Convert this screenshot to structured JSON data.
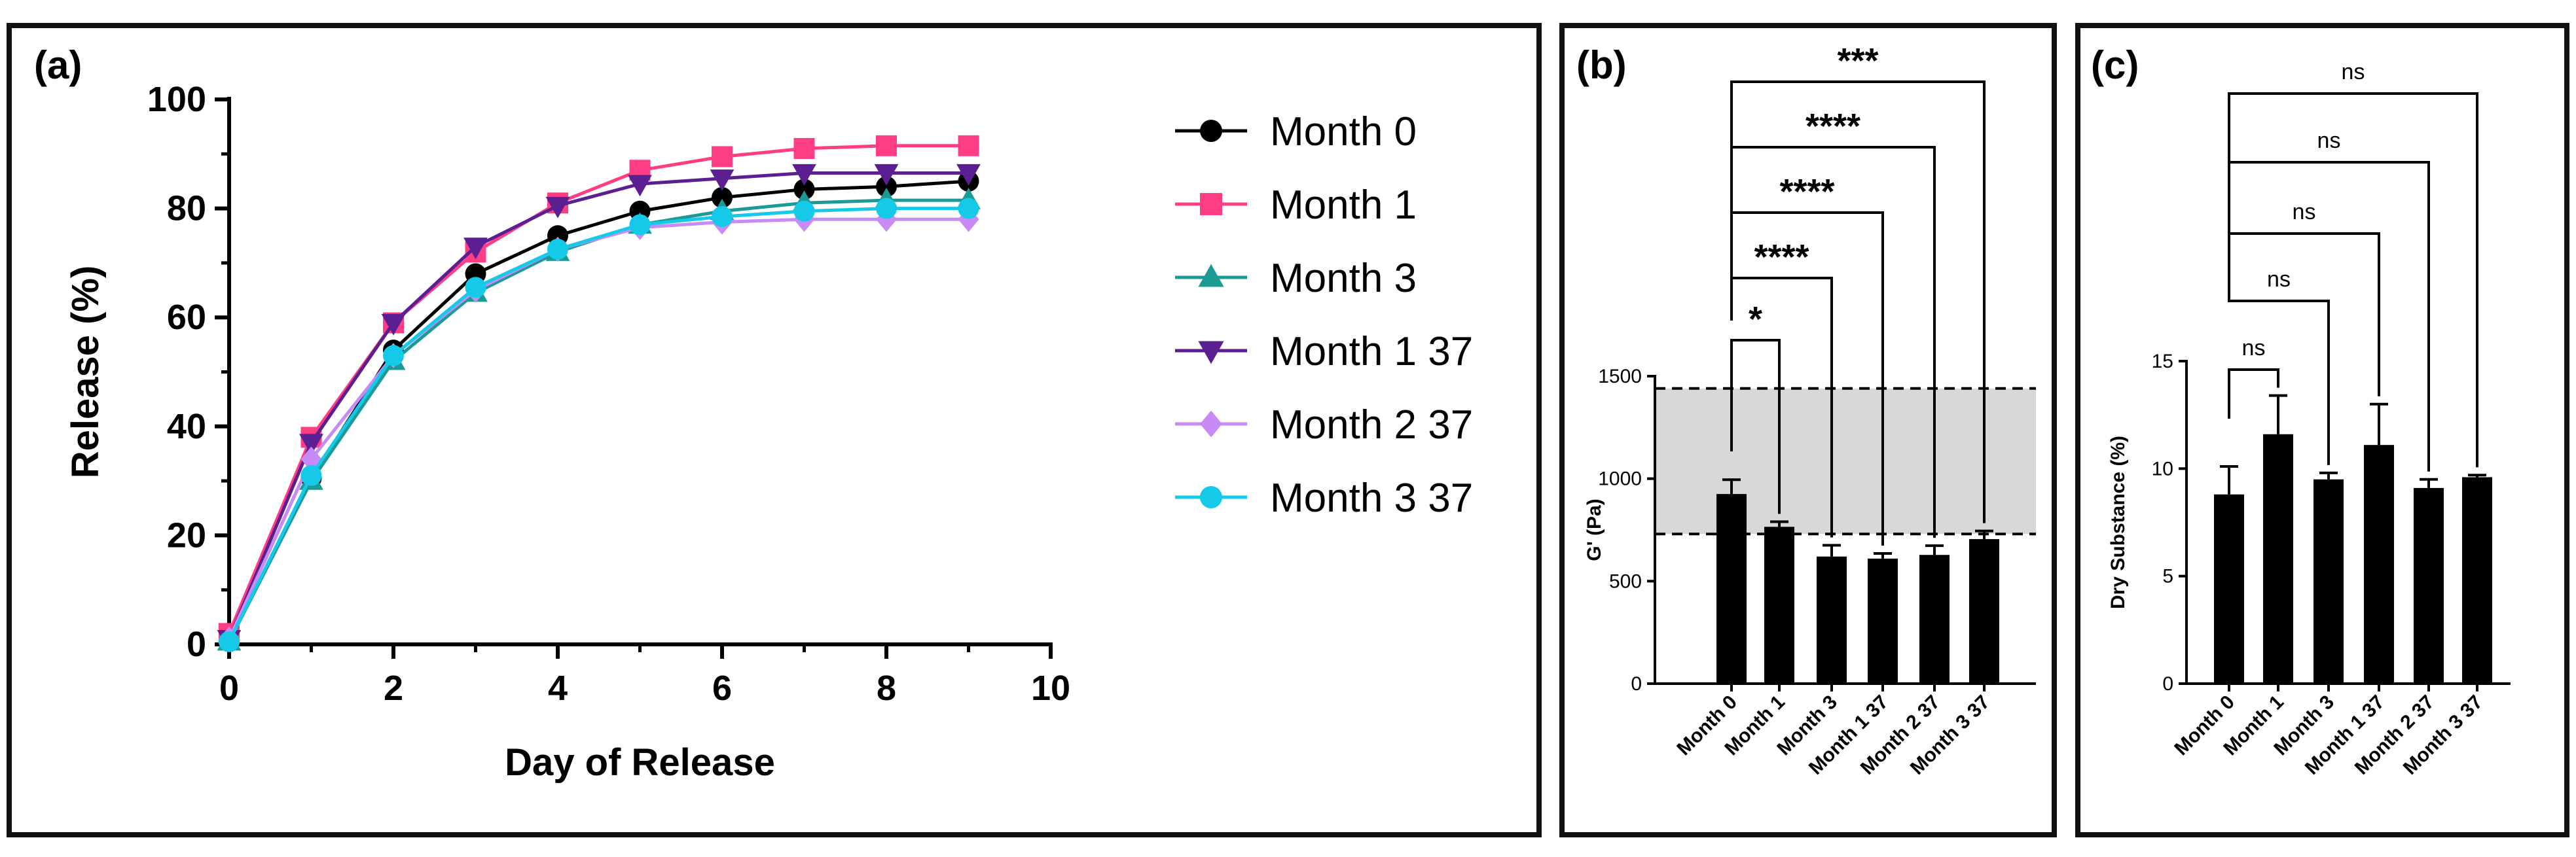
{
  "chart_data": [
    {
      "panel_label": "(a)",
      "type": "line",
      "xlabel": "Day of Release",
      "ylabel": "Release (%)",
      "xlim": [
        0,
        10
      ],
      "ylim": [
        0,
        100
      ],
      "x_ticks": [
        "0",
        "2",
        "4",
        "6",
        "8",
        "10"
      ],
      "y_ticks": [
        "0",
        "20",
        "40",
        "60",
        "80",
        "100"
      ],
      "x": [
        0,
        1,
        2,
        3,
        4,
        5,
        6,
        7,
        8,
        9
      ],
      "legend_position": "right",
      "series": [
        {
          "name": "Month 0",
          "color": "#000000",
          "marker": "circle",
          "values": [
            0.5,
            30.5,
            54,
            68,
            75,
            79.5,
            82,
            83.5,
            84,
            85
          ]
        },
        {
          "name": "Month 1",
          "color": "#ff3d84",
          "marker": "square",
          "values": [
            2,
            38,
            59,
            72,
            81,
            87,
            89.5,
            91,
            91.5,
            91.5
          ]
        },
        {
          "name": "Month 3",
          "color": "#1c9a96",
          "marker": "triangle-up",
          "values": [
            0.5,
            30,
            52,
            64.5,
            72,
            77,
            79.5,
            81,
            81.5,
            81.5
          ]
        },
        {
          "name": "Month 1 37",
          "color": "#5b1f91",
          "marker": "triangle-down",
          "values": [
            1,
            37,
            59,
            73,
            80.5,
            84.5,
            85.5,
            86.5,
            86.5,
            86.5
          ]
        },
        {
          "name": "Month 2 37",
          "color": "#c88af5",
          "marker": "diamond",
          "values": [
            1,
            34,
            53,
            65,
            72.5,
            76.5,
            77.5,
            78,
            78,
            78
          ]
        },
        {
          "name": "Month 3 37",
          "color": "#15c9e8",
          "marker": "circle",
          "values": [
            0.5,
            31,
            53,
            65.5,
            72.5,
            77,
            78.5,
            79.5,
            80,
            80
          ]
        }
      ]
    },
    {
      "panel_label": "(b)",
      "type": "bar",
      "ylabel": "G' (Pa)",
      "ylim": [
        0,
        1500
      ],
      "y_ticks": [
        "0",
        "500",
        "1000",
        "1500"
      ],
      "categories": [
        "Month 0",
        "Month 1",
        "Month 3",
        "Month 1 37",
        "Month 2 37",
        "Month 3 37"
      ],
      "values": [
        925,
        765,
        620,
        610,
        628,
        705
      ],
      "errors": [
        70,
        25,
        55,
        25,
        45,
        40
      ],
      "reference_band": [
        730,
        1440
      ],
      "significance": [
        {
          "from": 0,
          "to": 1,
          "label": "*"
        },
        {
          "from": 0,
          "to": 2,
          "label": "****"
        },
        {
          "from": 0,
          "to": 3,
          "label": "****"
        },
        {
          "from": 0,
          "to": 4,
          "label": "****"
        },
        {
          "from": 0,
          "to": 5,
          "label": "***"
        }
      ]
    },
    {
      "panel_label": "(c)",
      "type": "bar",
      "ylabel": "Dry Substance (%)",
      "ylim": [
        0,
        15
      ],
      "y_ticks": [
        "0",
        "5",
        "10",
        "15"
      ],
      "categories": [
        "Month 0",
        "Month 1",
        "Month 3",
        "Month 1 37",
        "Month 2 37",
        "Month 3 37"
      ],
      "values": [
        8.8,
        11.6,
        9.5,
        11.1,
        9.1,
        9.6
      ],
      "errors": [
        1.3,
        1.8,
        0.3,
        1.9,
        0.4,
        0.1
      ],
      "significance": [
        {
          "from": 0,
          "to": 1,
          "label": "ns"
        },
        {
          "from": 0,
          "to": 2,
          "label": "ns"
        },
        {
          "from": 0,
          "to": 3,
          "label": "ns"
        },
        {
          "from": 0,
          "to": 4,
          "label": "ns"
        },
        {
          "from": 0,
          "to": 5,
          "label": "ns"
        }
      ]
    }
  ]
}
